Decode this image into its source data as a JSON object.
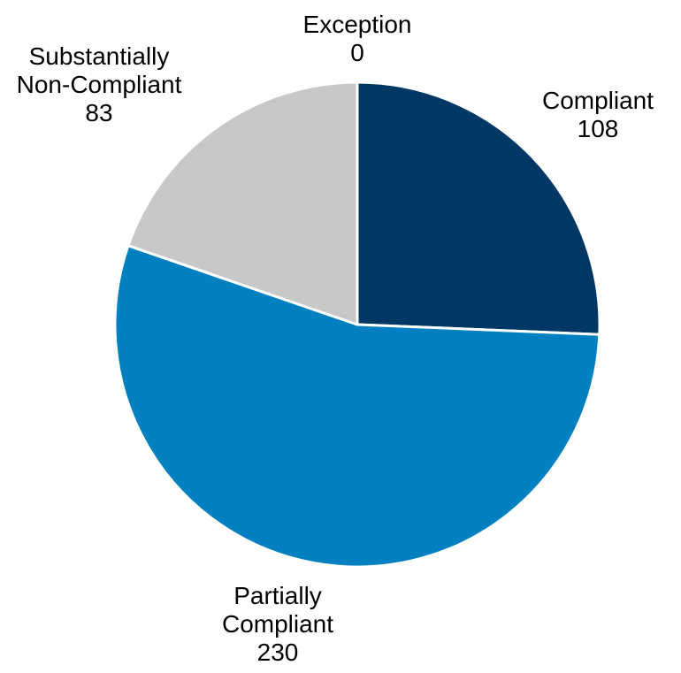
{
  "chart_data": {
    "type": "pie",
    "categories": [
      "Compliant",
      "Partially Compliant",
      "Substantially Non-Compliant",
      "Exception"
    ],
    "values": [
      108,
      230,
      83,
      0
    ],
    "colors": [
      "#003764",
      "#0080C0",
      "#C8C8C8",
      "#FFFFFF"
    ],
    "labels": [
      {
        "lines": [
          "Compliant"
        ],
        "value": "108"
      },
      {
        "lines": [
          "Partially",
          "Compliant"
        ],
        "value": "230"
      },
      {
        "lines": [
          "Substantially",
          "Non-Compliant"
        ],
        "value": "83"
      },
      {
        "lines": [
          "Exception"
        ],
        "value": "0"
      }
    ],
    "start_angle_deg": 0,
    "direction": "clockwise",
    "title": "",
    "legend": "none"
  }
}
